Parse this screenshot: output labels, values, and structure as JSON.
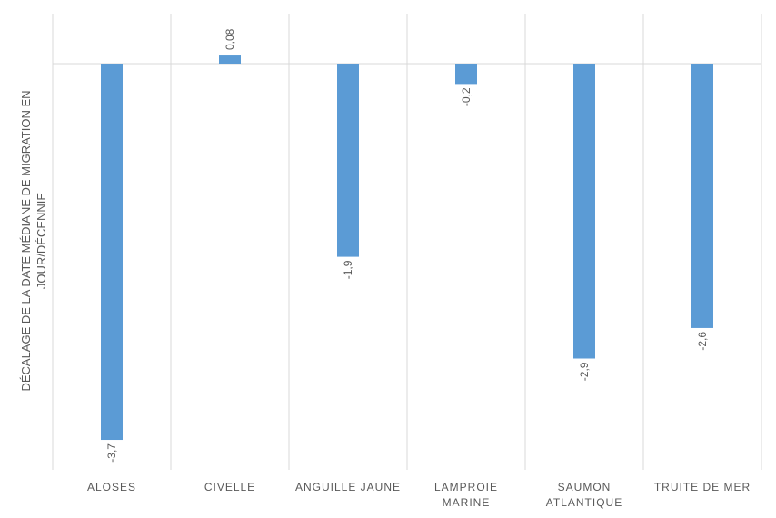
{
  "colors": {
    "bar": "#5b9bd5",
    "grid": "#d9d9d9",
    "text": "#595959"
  },
  "chart_data": {
    "type": "bar",
    "title": "",
    "xlabel": "",
    "ylabel_lines": [
      "DÉCALAGE DE LA DATE MÉDIANE DE MIGRATION EN",
      "JOUR/DÉCENNIE"
    ],
    "ylim": [
      -4.1,
      0.65
    ],
    "grid": "vertical category separators, horizontal zero line",
    "legend": "none",
    "categories": [
      [
        "ALOSES"
      ],
      [
        "CIVELLE"
      ],
      [
        "ANGUILLE JAUNE"
      ],
      [
        "LAMPROIE",
        "MARINE"
      ],
      [
        "SAUMON",
        "ATLANTIQUE"
      ],
      [
        "TRUITE DE MER"
      ]
    ],
    "values": [
      -3.7,
      0.08,
      -1.9,
      -0.2,
      -2.9,
      -2.6
    ],
    "data_labels": [
      "-3,7",
      "0,08",
      "-1,9",
      "-0,2",
      "-2,9",
      "-2,6"
    ]
  }
}
